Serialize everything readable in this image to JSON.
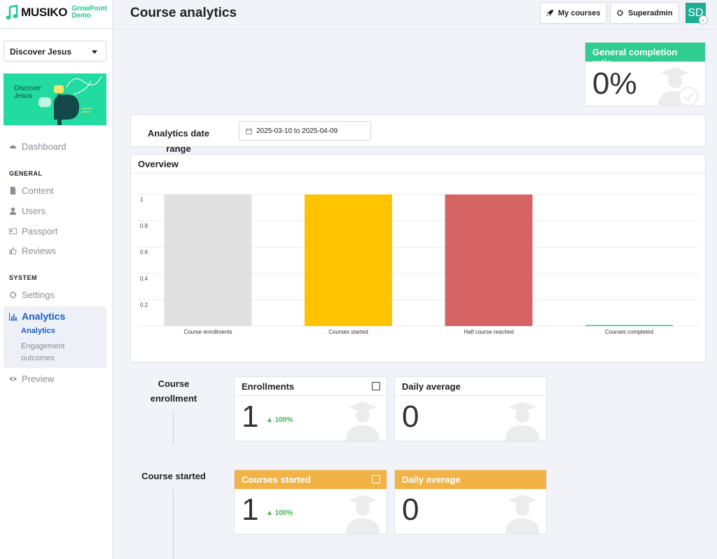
{
  "brand": {
    "name": "MUSIKO",
    "sub_line1": "GrowPoint",
    "sub_line2": "Demo"
  },
  "course_select": {
    "value": "Discover Jesus"
  },
  "banner": {
    "line1": "Discover",
    "line2": "Jesus"
  },
  "nav": {
    "dashboard": "Dashboard",
    "section_general": "GENERAL",
    "content": "Content",
    "users": "Users",
    "passport": "Passport",
    "reviews": "Reviews",
    "section_system": "SYSTEM",
    "settings": "Settings",
    "analytics": "Analytics",
    "analytics_sub": "Analytics",
    "engagement_sub": "Engagement outcomes",
    "preview": "Preview"
  },
  "header": {
    "title": "Course analytics",
    "my_courses": "My courses",
    "superadmin": "Superadmin",
    "avatar": "SD"
  },
  "completion": {
    "title": "General completion ratio",
    "value": "0%"
  },
  "date_range": {
    "label": "Analytics date range",
    "value": "2025-03-10 to 2025-04-09"
  },
  "overview": {
    "title": "Overview"
  },
  "chart_data": {
    "type": "bar",
    "categories": [
      "Course enrollments",
      "Courses started",
      "Half course reached",
      "Courses completed"
    ],
    "values": [
      1,
      1,
      1,
      0
    ],
    "colors": [
      "#e0e0e0",
      "#ffc300",
      "#d66464",
      "#2fcd8f"
    ],
    "yticks": [
      "1",
      "0.8",
      "0.6",
      "0.4",
      "0.2"
    ],
    "ylim": [
      0,
      1
    ],
    "grid": true
  },
  "enrollment_section": {
    "label": "Course enrollment",
    "enrollments_title": "Enrollments",
    "enrollments_value": "1",
    "enrollments_trend": "100%",
    "daily_title": "Daily average",
    "daily_value": "0"
  },
  "started_section": {
    "label": "Course started",
    "started_title": "Courses started",
    "started_value": "1",
    "started_trend": "100%",
    "daily_title": "Daily average",
    "daily_value": "0"
  }
}
